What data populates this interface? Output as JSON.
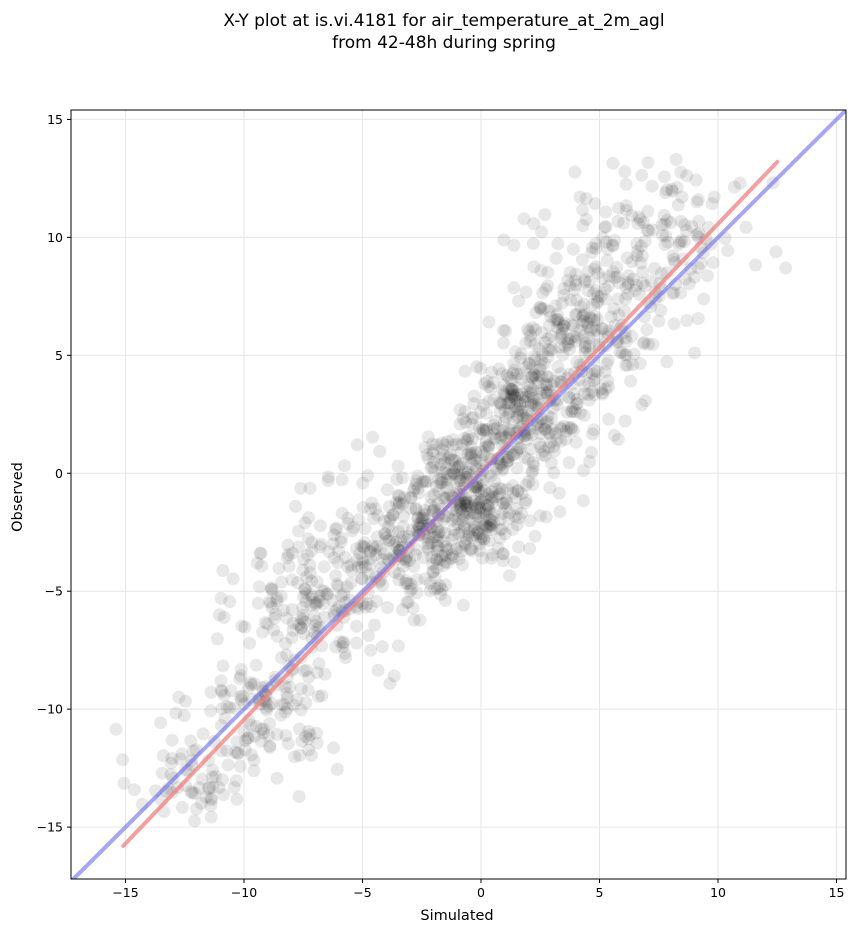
{
  "chart_data": {
    "type": "scatter",
    "title_lines": [
      "X-Y plot at is.vi.4181 for air_temperature_at_2m_agl",
      "from 42-48h during spring"
    ],
    "xlabel": "Simulated",
    "ylabel": "Observed",
    "xlim": [
      -17.3,
      15.4
    ],
    "ylim": [
      -17.2,
      15.4
    ],
    "xticks": [
      -15,
      -10,
      -5,
      0,
      5,
      10,
      15
    ],
    "yticks": [
      -15,
      -10,
      -5,
      0,
      5,
      10,
      15
    ],
    "tick_labels": [
      "−15",
      "−10",
      "−5",
      "0",
      "5",
      "10",
      "15"
    ],
    "grid": true,
    "point_color": "#000000",
    "point_alpha": 0.09,
    "n_points": 1500,
    "fit_line": {
      "color": "#f08080",
      "x": [
        -15.1,
        12.5
      ],
      "y": [
        -15.8,
        13.2
      ]
    },
    "identity_line": {
      "color": "#6b6bef",
      "x": [
        -17.3,
        15.4
      ],
      "y": [
        -17.3,
        15.4
      ]
    },
    "point_clusters": [
      {
        "x_mean": -12.5,
        "y_mean": -12.8,
        "x_sd": 1.2,
        "y_sd": 1.0,
        "n": 60
      },
      {
        "x_mean": -9.0,
        "y_mean": -10.0,
        "x_sd": 1.6,
        "y_sd": 1.4,
        "n": 120
      },
      {
        "x_mean": -7.0,
        "y_mean": -5.5,
        "x_sd": 1.6,
        "y_sd": 1.8,
        "n": 160
      },
      {
        "x_mean": -3.5,
        "y_mean": -3.0,
        "x_sd": 1.6,
        "y_sd": 1.5,
        "n": 200
      },
      {
        "x_mean": -0.5,
        "y_mean": -1.0,
        "x_sd": 1.2,
        "y_sd": 1.4,
        "n": 320
      },
      {
        "x_mean": 2.0,
        "y_mean": 2.5,
        "x_sd": 1.3,
        "y_sd": 1.6,
        "n": 280
      },
      {
        "x_mean": 4.5,
        "y_mean": 6.5,
        "x_sd": 1.6,
        "y_sd": 2.0,
        "n": 240
      },
      {
        "x_mean": 8.0,
        "y_mean": 10.0,
        "x_sd": 1.8,
        "y_sd": 1.6,
        "n": 120
      }
    ]
  }
}
